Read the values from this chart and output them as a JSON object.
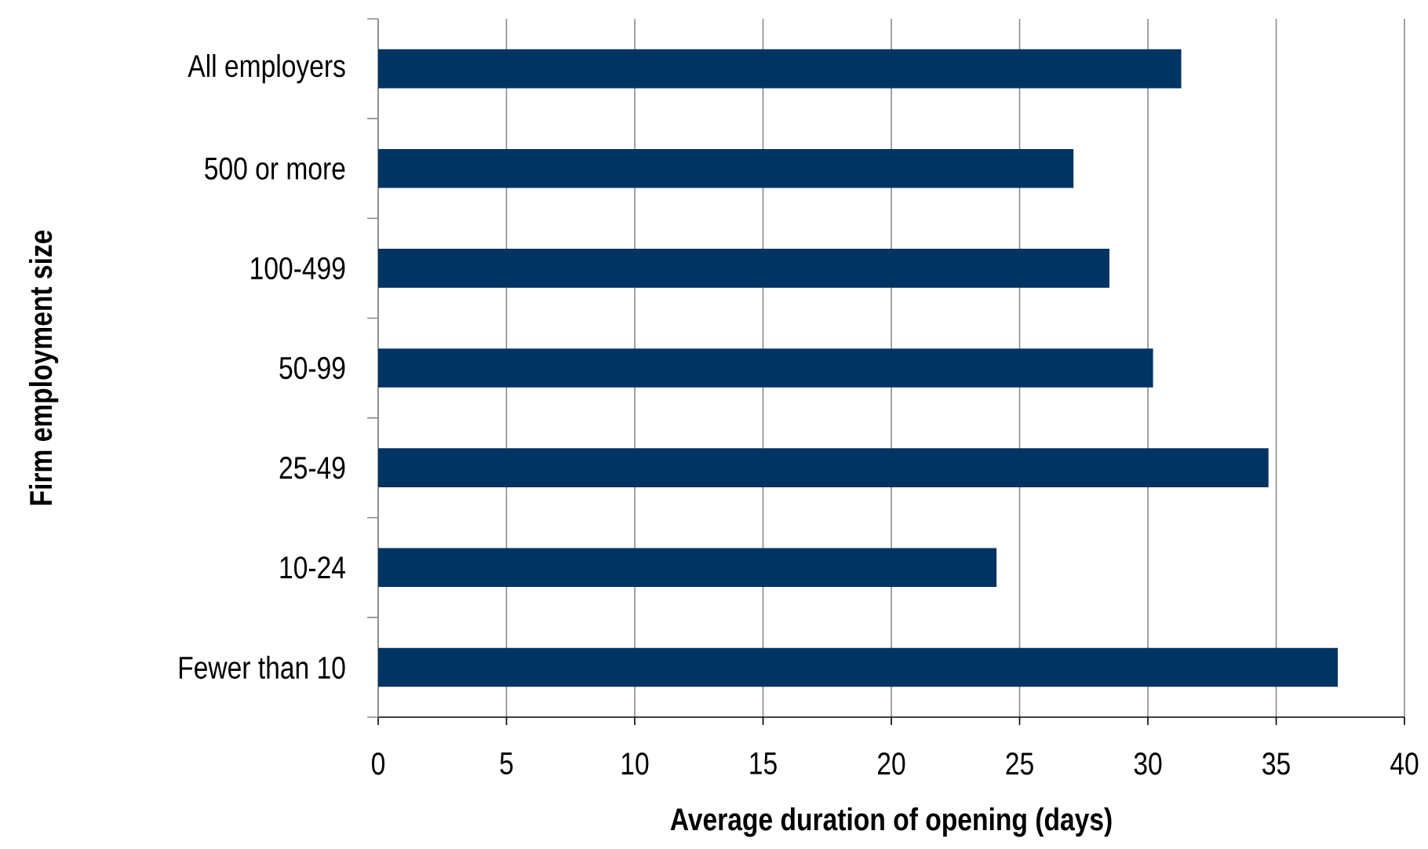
{
  "chart_data": {
    "type": "bar",
    "orientation": "horizontal",
    "categories": [
      "All employers",
      "500 or more",
      "100-499",
      "50-99",
      "25-49",
      "10-24",
      "Fewer than 10"
    ],
    "values": [
      31.3,
      27.1,
      28.5,
      30.2,
      34.7,
      24.1,
      37.4
    ],
    "color": "#003462",
    "xlabel": "Average duration of opening (days)",
    "ylabel": "Firm employment size",
    "xlim": [
      0,
      40
    ],
    "xticks": [
      0,
      5,
      10,
      15,
      20,
      25,
      30,
      35,
      40
    ],
    "grid": "x"
  }
}
